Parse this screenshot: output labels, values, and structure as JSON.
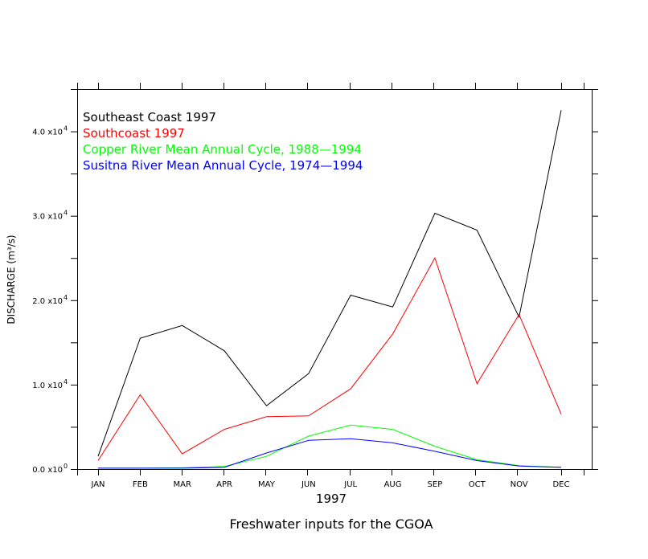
{
  "caption": "Freshwater inputs for the CGOA",
  "chart_data": {
    "type": "line",
    "title": "",
    "xlabel": "1997",
    "ylabel": "DISCHARGE",
    "ylabel_unit": "(m³/s)",
    "categories": [
      "JAN",
      "FEB",
      "MAR",
      "APR",
      "MAY",
      "JUN",
      "JUL",
      "AUG",
      "SEP",
      "OCT",
      "NOV",
      "DEC"
    ],
    "ylim": [
      0,
      45000
    ],
    "yticks": [
      {
        "value": 0,
        "mantissa": "0.0",
        "exp": "0"
      },
      {
        "value": 10000,
        "mantissa": "1.0",
        "exp": "4"
      },
      {
        "value": 20000,
        "mantissa": "2.0",
        "exp": "4"
      },
      {
        "value": 30000,
        "mantissa": "3.0",
        "exp": "4"
      },
      {
        "value": 40000,
        "mantissa": "4.0",
        "exp": "4"
      }
    ],
    "legend_position": "top-left",
    "grid": false,
    "series": [
      {
        "name": "Southeast Coast 1997",
        "color": "#000000",
        "values": [
          1500,
          15500,
          17000,
          14000,
          7500,
          11300,
          20600,
          19200,
          30300,
          28300,
          18000,
          42500
        ]
      },
      {
        "name": "Southcoast 1997",
        "color": "#ff0000",
        "values": [
          1000,
          8800,
          1800,
          4700,
          6200,
          6300,
          9500,
          16000,
          25000,
          10100,
          18300,
          6500
        ]
      },
      {
        "name": "Copper River Mean Annual Cycle, 1988—1994",
        "color": "#00ff00",
        "values": [
          100,
          100,
          150,
          300,
          1500,
          3900,
          5200,
          4700,
          2700,
          1100,
          400,
          200
        ]
      },
      {
        "name": "Susitna River Mean Annual Cycle, 1974—1994",
        "color": "#0000ff",
        "values": [
          100,
          100,
          100,
          200,
          1900,
          3400,
          3600,
          3100,
          2100,
          1000,
          350,
          200
        ]
      }
    ]
  }
}
